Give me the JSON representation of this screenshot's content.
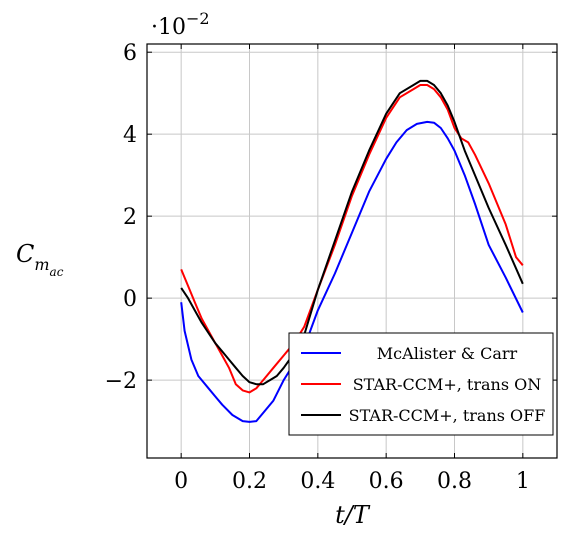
{
  "chart_data": {
    "type": "line",
    "title": "",
    "xlabel": "t/T",
    "ylabel": "C_{m_{ac}}",
    "y_scale_note": "·10^{-2}",
    "xlim": [
      -0.1,
      1.1
    ],
    "ylim": [
      -3.9,
      6.2
    ],
    "xticks": [
      0,
      0.2,
      0.4,
      0.6,
      0.8,
      1
    ],
    "xtick_labels": [
      "0",
      "0.2",
      "0.4",
      "0.6",
      "0.8",
      "1"
    ],
    "yticks": [
      -2,
      0,
      2,
      4,
      6
    ],
    "ytick_labels": [
      "−2",
      "0",
      "2",
      "4",
      "6"
    ],
    "grid": true,
    "legend_position": "bottom-right",
    "series": [
      {
        "name": "McAlister & Carr",
        "color": "#0000ff",
        "x": [
          0,
          0.01,
          0.03,
          0.05,
          0.08,
          0.1,
          0.12,
          0.15,
          0.18,
          0.2,
          0.22,
          0.24,
          0.27,
          0.3,
          0.33,
          0.36,
          0.4,
          0.45,
          0.5,
          0.55,
          0.6,
          0.63,
          0.66,
          0.69,
          0.72,
          0.74,
          0.76,
          0.78,
          0.8,
          0.83,
          0.86,
          0.9,
          0.95,
          1.0
        ],
        "y": [
          -0.1,
          -0.8,
          -1.5,
          -1.9,
          -2.2,
          -2.4,
          -2.6,
          -2.85,
          -3.0,
          -3.02,
          -3.0,
          -2.8,
          -2.5,
          -2.0,
          -1.6,
          -1.2,
          -0.3,
          0.6,
          1.6,
          2.6,
          3.4,
          3.8,
          4.1,
          4.25,
          4.3,
          4.28,
          4.15,
          3.9,
          3.6,
          3.0,
          2.3,
          1.3,
          0.5,
          -0.35
        ]
      },
      {
        "name": "STAR-CCM+, trans ON",
        "color": "#ff0000",
        "x": [
          0,
          0.02,
          0.04,
          0.06,
          0.08,
          0.1,
          0.12,
          0.14,
          0.16,
          0.18,
          0.2,
          0.22,
          0.24,
          0.27,
          0.3,
          0.33,
          0.36,
          0.4,
          0.45,
          0.5,
          0.55,
          0.6,
          0.64,
          0.68,
          0.7,
          0.72,
          0.74,
          0.76,
          0.78,
          0.8,
          0.82,
          0.84,
          0.86,
          0.9,
          0.95,
          0.98,
          1.0
        ],
        "y": [
          0.7,
          0.3,
          -0.1,
          -0.5,
          -0.8,
          -1.1,
          -1.4,
          -1.7,
          -2.1,
          -2.25,
          -2.3,
          -2.2,
          -2.0,
          -1.7,
          -1.4,
          -1.1,
          -0.7,
          0.2,
          1.3,
          2.5,
          3.5,
          4.4,
          4.9,
          5.1,
          5.2,
          5.2,
          5.1,
          4.9,
          4.6,
          4.15,
          3.9,
          3.8,
          3.5,
          2.8,
          1.8,
          1.0,
          0.8
        ]
      },
      {
        "name": "STAR-CCM+, trans OFF",
        "color": "#000000",
        "x": [
          0,
          0.02,
          0.04,
          0.06,
          0.08,
          0.1,
          0.12,
          0.14,
          0.16,
          0.18,
          0.2,
          0.22,
          0.24,
          0.26,
          0.28,
          0.3,
          0.33,
          0.36,
          0.4,
          0.45,
          0.5,
          0.55,
          0.6,
          0.64,
          0.68,
          0.7,
          0.72,
          0.74,
          0.76,
          0.78,
          0.8,
          0.83,
          0.86,
          0.9,
          0.95,
          1.0
        ],
        "y": [
          0.25,
          0.0,
          -0.3,
          -0.6,
          -0.85,
          -1.1,
          -1.3,
          -1.5,
          -1.7,
          -1.9,
          -2.05,
          -2.1,
          -2.1,
          -2.0,
          -1.9,
          -1.7,
          -1.35,
          -0.9,
          0.2,
          1.4,
          2.6,
          3.6,
          4.5,
          5.0,
          5.2,
          5.3,
          5.3,
          5.2,
          5.0,
          4.7,
          4.3,
          3.6,
          3.0,
          2.2,
          1.3,
          0.35
        ]
      }
    ]
  }
}
